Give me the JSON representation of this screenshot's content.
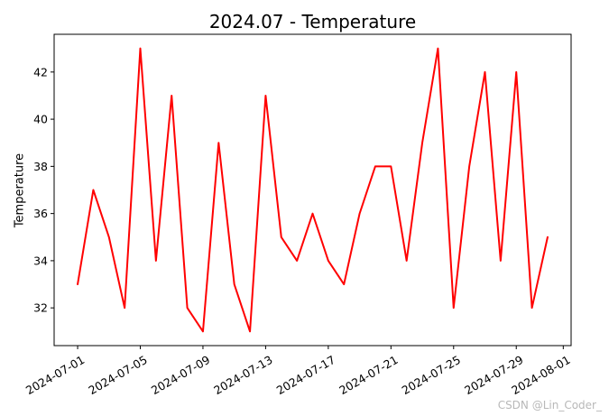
{
  "chart_data": {
    "type": "line",
    "title": "2024.07 - Temperature",
    "xlabel": "",
    "ylabel": "Temperature",
    "x": [
      "2024-07-01",
      "2024-07-02",
      "2024-07-03",
      "2024-07-04",
      "2024-07-05",
      "2024-07-06",
      "2024-07-07",
      "2024-07-08",
      "2024-07-09",
      "2024-07-10",
      "2024-07-11",
      "2024-07-12",
      "2024-07-13",
      "2024-07-14",
      "2024-07-15",
      "2024-07-16",
      "2024-07-17",
      "2024-07-18",
      "2024-07-19",
      "2024-07-20",
      "2024-07-21",
      "2024-07-22",
      "2024-07-23",
      "2024-07-24",
      "2024-07-25",
      "2024-07-26",
      "2024-07-27",
      "2024-07-28",
      "2024-07-29",
      "2024-07-30",
      "2024-07-31"
    ],
    "series": [
      {
        "values": [
          33,
          37,
          35,
          32,
          43,
          34,
          41,
          32,
          31,
          39,
          33,
          31,
          41,
          35,
          34,
          36,
          34,
          33,
          36,
          38,
          38,
          34,
          39,
          43,
          32,
          38,
          42,
          34,
          42,
          32,
          35
        ],
        "color": "#ff0000"
      }
    ],
    "xticks": [
      "2024-07-01",
      "2024-07-05",
      "2024-07-09",
      "2024-07-13",
      "2024-07-17",
      "2024-07-21",
      "2024-07-25",
      "2024-07-29",
      "2024-08-01"
    ],
    "yticks": [
      32,
      34,
      36,
      38,
      40,
      42
    ],
    "ylim": [
      30.4,
      43.6
    ],
    "xlim": [
      "2024-06-29T12:00",
      "2024-08-01T12:00"
    ],
    "grid": false,
    "legend": "none"
  },
  "watermark": "CSDN @Lin_Coder_"
}
